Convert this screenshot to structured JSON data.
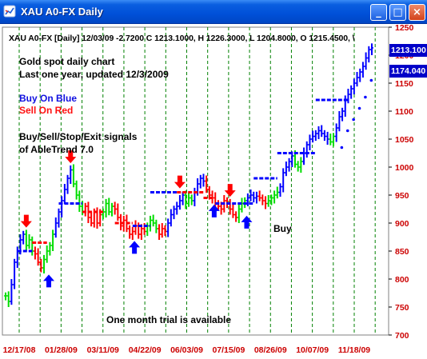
{
  "window": {
    "title": "XAU A0-FX Daily",
    "minimize_label": "_",
    "maximize_label": "□",
    "close_label": "×"
  },
  "header_info": "XAU A0-FX [Daily] 12/03/09  -2.7200 C 1213.1000, H 1226.3000, L 1204.8000, O 1215.4500, \\",
  "notes": {
    "line1": "Gold spot daily chart",
    "line2": "Last one year, updated 12/3/2009",
    "buy_on_blue": "Buy On Blue",
    "sell_on_red": "Sell On Red",
    "signals_line1": "Buy/Sell/Stop/Exit signals",
    "signals_line2": "of AbleTrend 7.0",
    "buy_label": "Buy",
    "trial": "One month trial is available"
  },
  "price_labels": {
    "current": "1213.100",
    "stop": "1174.040"
  },
  "colors": {
    "buy": "#0000ff",
    "sell": "#ff0000",
    "neutral": "#00dd00",
    "grid": "#008000"
  },
  "chart_data": {
    "type": "ohlc",
    "y_ticks": [
      700,
      750,
      800,
      850,
      900,
      950,
      1000,
      1050,
      1100,
      1150,
      1200,
      1250
    ],
    "ylim": [
      700,
      1250
    ],
    "x_ticks": [
      "12/17/08",
      "01/28/09",
      "03/11/09",
      "04/22/09",
      "06/03/09",
      "07/15/09",
      "08/26/09",
      "10/07/09",
      "11/18/09"
    ],
    "series": [
      {
        "trend": [
          {
            "c": "g",
            "v": [
              770,
              760
            ]
          },
          {
            "c": "b",
            "v": [
              790,
              830,
              850,
              870,
              880
            ]
          },
          {
            "c": "g",
            "v": [
              860,
              870,
              850
            ]
          },
          {
            "c": "r",
            "v": [
              845,
              830,
              820
            ]
          },
          {
            "c": "g",
            "v": [
              835,
              850,
              860,
              880
            ]
          },
          {
            "c": "b",
            "v": [
              900,
              920,
              940,
              960,
              980,
              995
            ]
          },
          {
            "c": "g",
            "v": [
              970,
              950,
              930,
              920
            ]
          },
          {
            "c": "r",
            "v": [
              930,
              910,
              900,
              920,
              900,
              915
            ]
          },
          {
            "c": "g",
            "v": [
              920,
              935,
              920,
              930
            ]
          },
          {
            "c": "r",
            "v": [
              925,
              910,
              895,
              905,
              890,
              880,
              885,
              895,
              880,
              890,
              885
            ]
          },
          {
            "c": "g",
            "v": [
              895,
              905,
              900,
              890
            ]
          },
          {
            "c": "r",
            "v": [
              880,
              890,
              885
            ]
          },
          {
            "c": "b",
            "v": [
              900,
              915,
              925,
              930,
              940,
              950
            ]
          },
          {
            "c": "g",
            "v": [
              935,
              945,
              940
            ]
          },
          {
            "c": "b",
            "v": [
              955,
              970,
              980,
              975
            ]
          },
          {
            "c": "r",
            "v": [
              960,
              950,
              945,
              935,
              930,
              925,
              940,
              935,
              925,
              915,
              910
            ]
          },
          {
            "c": "g",
            "v": [
              925,
              935,
              940
            ]
          },
          {
            "c": "b",
            "v": [
              945,
              950,
              945,
              948
            ]
          },
          {
            "c": "r",
            "v": [
              945,
              940,
              935
            ]
          },
          {
            "c": "g",
            "v": [
              940,
              945,
              950,
              955
            ]
          },
          {
            "c": "b",
            "v": [
              965,
              990,
              1000,
              1010,
              1020
            ]
          },
          {
            "c": "g",
            "v": [
              1005,
              1000,
              1010
            ]
          },
          {
            "c": "b",
            "v": [
              1025,
              1040,
              1050,
              1055,
              1060,
              1065,
              1060,
              1055,
              1050
            ]
          },
          {
            "c": "g",
            "v": [
              1045,
              1055
            ]
          },
          {
            "c": "b",
            "v": [
              1070,
              1090,
              1100,
              1120,
              1130,
              1140,
              1150,
              1160,
              1170,
              1180,
              1195,
              1210,
              1213
            ]
          }
        ],
        "buy_stops": [
          {
            "from": 4,
            "to": 9,
            "v": 850
          },
          {
            "from": 18,
            "to": 26,
            "v": 935
          },
          {
            "from": 43,
            "to": 49,
            "v": 895
          },
          {
            "from": 49,
            "to": 58,
            "v": 955
          },
          {
            "from": 71,
            "to": 84,
            "v": 935
          },
          {
            "from": 84,
            "to": 92,
            "v": 980
          },
          {
            "from": 92,
            "to": 105,
            "v": 1025
          },
          {
            "from": 105,
            "to": 116,
            "v": 1120
          }
        ],
        "sell_stops": [
          {
            "from": 9,
            "to": 14,
            "v": 865
          },
          {
            "from": 26,
            "to": 33,
            "v": 920
          },
          {
            "from": 37,
            "to": 43,
            "v": 900
          },
          {
            "from": 58,
            "to": 67,
            "v": 955
          },
          {
            "from": 67,
            "to": 71,
            "v": 945
          }
        ],
        "buy_arrows": [
          13,
          42,
          69,
          80
        ],
        "sell_arrows": [
          7,
          22,
          59,
          76
        ]
      }
    ]
  }
}
